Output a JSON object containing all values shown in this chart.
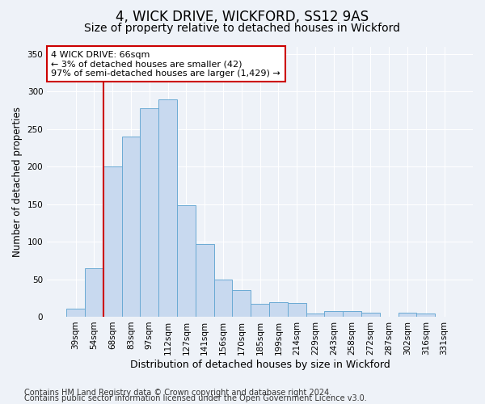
{
  "title1": "4, WICK DRIVE, WICKFORD, SS12 9AS",
  "title2": "Size of property relative to detached houses in Wickford",
  "xlabel": "Distribution of detached houses by size in Wickford",
  "ylabel": "Number of detached properties",
  "categories": [
    "39sqm",
    "54sqm",
    "68sqm",
    "83sqm",
    "97sqm",
    "112sqm",
    "127sqm",
    "141sqm",
    "156sqm",
    "170sqm",
    "185sqm",
    "199sqm",
    "214sqm",
    "229sqm",
    "243sqm",
    "258sqm",
    "272sqm",
    "287sqm",
    "302sqm",
    "316sqm",
    "331sqm"
  ],
  "values": [
    11,
    65,
    200,
    240,
    278,
    290,
    148,
    97,
    49,
    36,
    17,
    19,
    18,
    4,
    8,
    7,
    5,
    0,
    5,
    4,
    0
  ],
  "bar_color": "#c8d9ef",
  "bar_edge_color": "#6aaad4",
  "highlight_color": "#cc0000",
  "annotation_text": "4 WICK DRIVE: 66sqm\n← 3% of detached houses are smaller (42)\n97% of semi-detached houses are larger (1,429) →",
  "annotation_box_color": "#ffffff",
  "annotation_box_edge_color": "#cc0000",
  "vline_bar_index": 1,
  "ylim": [
    0,
    360
  ],
  "yticks": [
    0,
    50,
    100,
    150,
    200,
    250,
    300,
    350
  ],
  "background_color": "#eef2f8",
  "plot_background": "#eef2f8",
  "grid_color": "#ffffff",
  "footer_line1": "Contains HM Land Registry data © Crown copyright and database right 2024.",
  "footer_line2": "Contains public sector information licensed under the Open Government Licence v3.0.",
  "title1_fontsize": 12,
  "title2_fontsize": 10,
  "annotation_fontsize": 8,
  "footer_fontsize": 7,
  "xlabel_fontsize": 9,
  "ylabel_fontsize": 8.5,
  "tick_fontsize": 7.5
}
